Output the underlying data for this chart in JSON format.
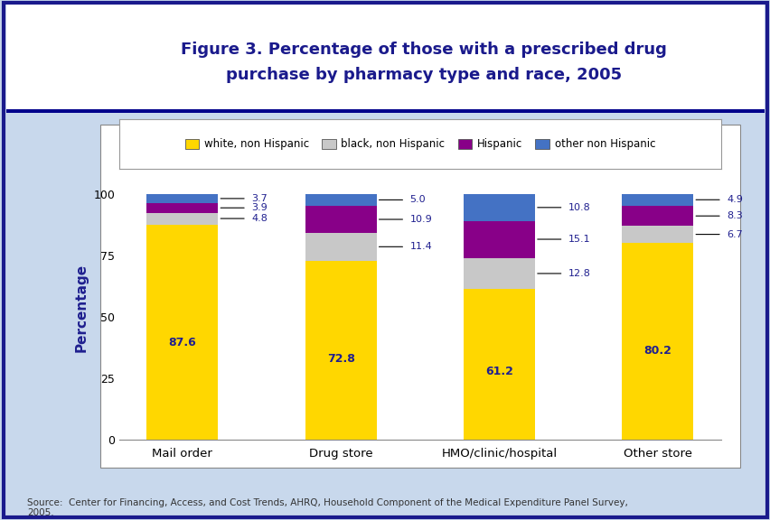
{
  "categories": [
    "Mail order",
    "Drug store",
    "HMO/clinic/hospital",
    "Other store"
  ],
  "white": [
    87.6,
    72.8,
    61.2,
    80.2
  ],
  "black": [
    4.8,
    11.4,
    12.8,
    6.7
  ],
  "hispanic": [
    3.9,
    10.9,
    15.1,
    8.3
  ],
  "other": [
    3.7,
    5.0,
    10.8,
    4.9
  ],
  "colors": {
    "white": "#FFD700",
    "black": "#C8C8C8",
    "hispanic": "#880088",
    "other": "#4472C4"
  },
  "legend_labels": [
    "white, non Hispanic",
    "black, non Hispanic",
    "Hispanic",
    "other non Hispanic"
  ],
  "ylabel": "Percentage",
  "ylim": [
    0,
    107
  ],
  "yticks": [
    0,
    25,
    50,
    75,
    100
  ],
  "title_line1": "Figure 3. Percentage of those with a prescribed drug",
  "title_line2": "purchase by pharmacy type and race, 2005",
  "source_text": "Source:  Center for Financing, Access, and Cost Trends, AHRQ, Household Component of the Medical Expenditure Panel Survey,\n2005.",
  "bg_color": "#C8D8EC",
  "header_bg": "#FFFFFF",
  "plot_bg": "#FFFFFF",
  "label_color_blue": "#1F1F8F",
  "bar_width": 0.45,
  "title_color": "#1A1A8C",
  "blue_line_color": "#00008B",
  "outer_border_color": "#1A1A8C"
}
